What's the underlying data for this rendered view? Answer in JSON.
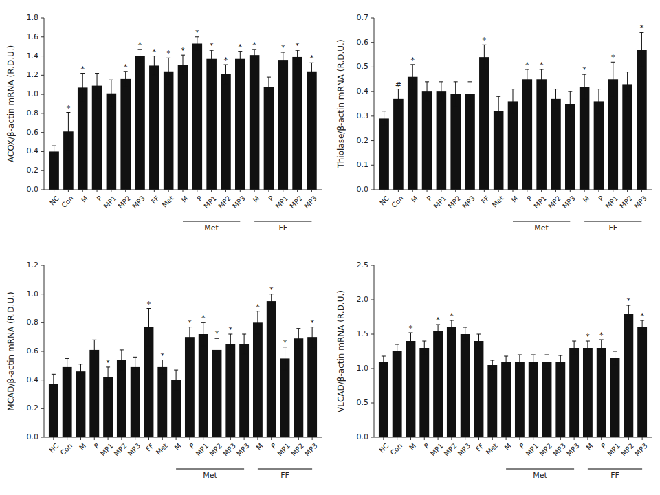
{
  "chart_data": [
    {
      "type": "bar",
      "ylabel": "ACOX/β-actin mRNA (R.D.U.)",
      "color": "#111111",
      "ylim": [
        0,
        1.8
      ],
      "yticks": [
        {
          "value": 0.0,
          "label": "0.0"
        },
        0.2,
        0.4,
        0.6,
        0.8,
        {
          "value": 1.0,
          "label": "1.0"
        },
        1.2,
        1.4,
        1.6,
        1.8
      ],
      "categories": [
        "NC",
        "Con",
        "M",
        "P",
        "MP1",
        "MP2",
        "MP3",
        "FF",
        "Met",
        "M",
        "P",
        "MP1",
        "MP2",
        "MP3",
        "M",
        "P",
        "MP1",
        "MP2",
        "MP3"
      ],
      "values": [
        0.4,
        0.61,
        1.07,
        1.09,
        1.01,
        1.16,
        1.4,
        1.3,
        1.24,
        1.31,
        1.53,
        1.37,
        1.21,
        1.37,
        1.41,
        1.08,
        1.36,
        1.39,
        1.24
      ],
      "errors": [
        0.06,
        0.2,
        0.15,
        0.13,
        0.14,
        0.08,
        0.07,
        0.1,
        0.14,
        0.1,
        0.07,
        0.09,
        0.1,
        0.08,
        0.06,
        0.1,
        0.08,
        0.07,
        0.09
      ],
      "sig_labels": [
        null,
        "*",
        "*",
        null,
        null,
        "*",
        "*",
        "*",
        "*",
        "*",
        "*",
        "*",
        "*",
        "*",
        "*",
        null,
        "*",
        "*",
        "*"
      ],
      "groups": [
        {
          "label": "Met",
          "start": 9,
          "end": 13
        },
        {
          "label": "FF",
          "start": 14,
          "end": 18
        }
      ]
    },
    {
      "type": "bar",
      "ylabel": "Thiolase/β-actin mRNA (R.D.U.)",
      "color": "#111111",
      "ylim": [
        0,
        0.7
      ],
      "yticks": [
        {
          "value": 0.0,
          "label": "0.0"
        },
        0.1,
        0.2,
        0.3,
        0.4,
        0.5,
        0.6,
        0.7
      ],
      "categories": [
        "NC",
        "Con",
        "M",
        "P",
        "MP1",
        "MP2",
        "MP3",
        "FF",
        "Met",
        "M",
        "P",
        "MP1",
        "MP2",
        "MP3",
        "M",
        "P",
        "MP1",
        "MP2",
        "MP3"
      ],
      "values": [
        0.29,
        0.37,
        0.46,
        0.4,
        0.4,
        0.39,
        0.39,
        0.54,
        0.32,
        0.36,
        0.45,
        0.45,
        0.37,
        0.35,
        0.42,
        0.36,
        0.45,
        0.43,
        0.57
      ],
      "errors": [
        0.03,
        0.04,
        0.05,
        0.04,
        0.04,
        0.05,
        0.05,
        0.05,
        0.06,
        0.05,
        0.04,
        0.04,
        0.04,
        0.05,
        0.05,
        0.05,
        0.07,
        0.05,
        0.07
      ],
      "sig_labels": [
        null,
        "#",
        "*",
        null,
        null,
        null,
        null,
        "*",
        null,
        null,
        "*",
        "*",
        null,
        null,
        "*",
        null,
        "*",
        null,
        "*"
      ],
      "groups": [
        {
          "label": "Met",
          "start": 9,
          "end": 13
        },
        {
          "label": "FF",
          "start": 14,
          "end": 18
        }
      ]
    },
    {
      "type": "bar",
      "ylabel": "MCAD/β-actin mRNA (R.D.U.)",
      "color": "#111111",
      "ylim": [
        0,
        1.2
      ],
      "yticks": [
        {
          "value": 0.0,
          "label": "0.0"
        },
        0.2,
        0.4,
        0.6,
        0.8,
        {
          "value": 1.0,
          "label": "1.0"
        },
        1.2
      ],
      "categories": [
        "NC",
        "Con",
        "M",
        "P",
        "MP1",
        "MP2",
        "MP3",
        "FF",
        "Met",
        "M",
        "P",
        "MP1",
        "MP2",
        "MP3",
        "MP3",
        "M",
        "P",
        "MP1",
        "MP2",
        "MP3"
      ],
      "values": [
        0.37,
        0.49,
        0.46,
        0.61,
        0.42,
        0.54,
        0.49,
        0.77,
        0.49,
        0.4,
        0.7,
        0.72,
        0.61,
        0.65,
        0.65,
        0.8,
        0.95,
        0.55,
        0.69,
        0.7
      ],
      "errors": [
        0.07,
        0.06,
        0.05,
        0.07,
        0.07,
        0.07,
        0.07,
        0.13,
        0.05,
        0.07,
        0.07,
        0.08,
        0.08,
        0.07,
        0.07,
        0.08,
        0.05,
        0.08,
        0.07,
        0.07
      ],
      "sig_labels": [
        null,
        null,
        null,
        null,
        "*",
        null,
        null,
        "*",
        "*",
        null,
        "*",
        "*",
        "*",
        "*",
        null,
        "*",
        "*",
        "*",
        null,
        "*"
      ],
      "groups": [
        {
          "label": "Met",
          "start": 9,
          "end": 14
        },
        {
          "label": "FF",
          "start": 15,
          "end": 19
        }
      ]
    },
    {
      "type": "bar",
      "ylabel": "VLCAD/β-actin mRNA (R.D.U.)",
      "color": "#111111",
      "ylim": [
        0,
        2.5
      ],
      "yticks": [
        {
          "value": 0.0,
          "label": "0.0"
        },
        0.5,
        {
          "value": 1.0,
          "label": "1.0"
        },
        1.5,
        {
          "value": 2.0,
          "label": "2.0"
        },
        2.5
      ],
      "categories": [
        "NC",
        "Con",
        "M",
        "P",
        "MP1",
        "MP2",
        "MP3",
        "FF",
        "Met",
        "M",
        "P",
        "MP1",
        "MP2",
        "MP3",
        "MP3",
        "M",
        "P",
        "MP1",
        "MP2",
        "MP3"
      ],
      "values": [
        1.1,
        1.25,
        1.4,
        1.3,
        1.55,
        1.6,
        1.5,
        1.4,
        1.05,
        1.1,
        1.1,
        1.1,
        1.1,
        1.1,
        1.3,
        1.3,
        1.3,
        1.15,
        1.8,
        1.6
      ],
      "errors": [
        0.08,
        0.1,
        0.12,
        0.1,
        0.09,
        0.1,
        0.1,
        0.1,
        0.07,
        0.08,
        0.1,
        0.1,
        0.1,
        0.09,
        0.1,
        0.1,
        0.12,
        0.1,
        0.12,
        0.1
      ],
      "sig_labels": [
        null,
        null,
        "*",
        null,
        "*",
        "*",
        null,
        null,
        null,
        null,
        null,
        null,
        null,
        null,
        null,
        "*",
        "*",
        null,
        "*",
        "*"
      ],
      "groups": [
        {
          "label": "Met",
          "start": 9,
          "end": 14
        },
        {
          "label": "FF",
          "start": 15,
          "end": 19
        }
      ]
    }
  ]
}
